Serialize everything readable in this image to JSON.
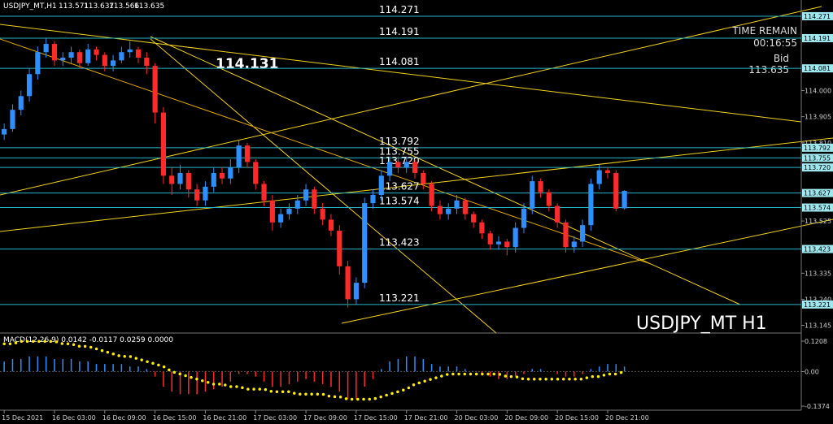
{
  "header": {
    "symbol": "USDJPY_MT,H1"
  },
  "chart_data": [
    {
      "type": "candlestick",
      "candles": [
        [
          113.84,
          113.88,
          113.82,
          113.86
        ],
        [
          113.86,
          113.95,
          113.85,
          113.93
        ],
        [
          113.93,
          114.0,
          113.91,
          113.98
        ],
        [
          113.98,
          114.08,
          113.96,
          114.06
        ],
        [
          114.06,
          114.16,
          114.04,
          114.14
        ],
        [
          114.14,
          114.19,
          114.12,
          114.17
        ],
        [
          114.17,
          114.18,
          114.09,
          114.11
        ],
        [
          114.11,
          114.14,
          114.09,
          114.12
        ],
        [
          114.12,
          114.16,
          114.1,
          114.14
        ],
        [
          114.14,
          114.15,
          114.08,
          114.1
        ],
        [
          114.1,
          114.17,
          114.09,
          114.15
        ],
        [
          114.15,
          114.16,
          114.11,
          114.13
        ],
        [
          114.13,
          114.14,
          114.07,
          114.09
        ],
        [
          114.09,
          114.13,
          114.07,
          114.11
        ],
        [
          114.11,
          114.16,
          114.1,
          114.14
        ],
        [
          114.14,
          114.18,
          114.12,
          114.15
        ],
        [
          114.15,
          114.16,
          114.1,
          114.12
        ],
        [
          114.12,
          114.14,
          114.06,
          114.09
        ],
        [
          114.09,
          114.1,
          113.88,
          113.92
        ],
        [
          113.92,
          113.94,
          113.66,
          113.69
        ],
        [
          113.69,
          113.72,
          113.62,
          113.66
        ],
        [
          113.66,
          113.73,
          113.64,
          113.7
        ],
        [
          113.7,
          113.71,
          113.61,
          113.64
        ],
        [
          113.64,
          113.66,
          113.58,
          113.6
        ],
        [
          113.6,
          113.67,
          113.58,
          113.65
        ],
        [
          113.65,
          113.72,
          113.63,
          113.7
        ],
        [
          113.7,
          113.72,
          113.66,
          113.68
        ],
        [
          113.68,
          113.75,
          113.66,
          113.72
        ],
        [
          113.72,
          113.82,
          113.7,
          113.8
        ],
        [
          113.8,
          113.81,
          113.72,
          113.74
        ],
        [
          113.74,
          113.75,
          113.64,
          113.66
        ],
        [
          113.66,
          113.67,
          113.58,
          113.6
        ],
        [
          113.6,
          113.62,
          113.49,
          113.52
        ],
        [
          113.52,
          113.57,
          113.5,
          113.55
        ],
        [
          113.55,
          113.59,
          113.53,
          113.57
        ],
        [
          113.57,
          113.62,
          113.55,
          113.6
        ],
        [
          113.6,
          113.66,
          113.58,
          113.64
        ],
        [
          113.64,
          113.65,
          113.55,
          113.57
        ],
        [
          113.57,
          113.59,
          113.51,
          113.53
        ],
        [
          113.53,
          113.55,
          113.47,
          113.49
        ],
        [
          113.49,
          113.51,
          113.33,
          113.36
        ],
        [
          113.36,
          113.38,
          113.21,
          113.24
        ],
        [
          113.24,
          113.32,
          113.22,
          113.3
        ],
        [
          113.3,
          113.61,
          113.28,
          113.59
        ],
        [
          113.59,
          113.64,
          113.57,
          113.62
        ],
        [
          113.62,
          113.71,
          113.6,
          113.69
        ],
        [
          113.69,
          113.76,
          113.67,
          113.74
        ],
        [
          113.74,
          113.76,
          113.7,
          113.72
        ],
        [
          113.72,
          113.76,
          113.7,
          113.74
        ],
        [
          113.74,
          113.75,
          113.68,
          113.7
        ],
        [
          113.7,
          113.71,
          113.64,
          113.66
        ],
        [
          113.66,
          113.67,
          113.56,
          113.58
        ],
        [
          113.58,
          113.6,
          113.53,
          113.55
        ],
        [
          113.55,
          113.59,
          113.53,
          113.57
        ],
        [
          113.57,
          113.62,
          113.55,
          113.6
        ],
        [
          113.6,
          113.61,
          113.53,
          113.55
        ],
        [
          113.55,
          113.56,
          113.5,
          113.52
        ],
        [
          113.52,
          113.53,
          113.46,
          113.48
        ],
        [
          113.48,
          113.49,
          113.42,
          113.44
        ],
        [
          113.44,
          113.47,
          113.42,
          113.45
        ],
        [
          113.45,
          113.46,
          113.4,
          113.43
        ],
        [
          113.43,
          113.52,
          113.41,
          113.5
        ],
        [
          113.5,
          113.59,
          113.48,
          113.57
        ],
        [
          113.57,
          113.69,
          113.55,
          113.67
        ],
        [
          113.67,
          113.68,
          113.61,
          113.63
        ],
        [
          113.63,
          113.64,
          113.56,
          113.58
        ],
        [
          113.58,
          113.59,
          113.5,
          113.52
        ],
        [
          113.52,
          113.53,
          113.41,
          113.43
        ],
        [
          113.43,
          113.47,
          113.41,
          113.45
        ],
        [
          113.45,
          113.53,
          113.43,
          113.51
        ],
        [
          113.51,
          113.68,
          113.49,
          113.66
        ],
        [
          113.66,
          113.73,
          113.64,
          113.71
        ],
        [
          113.71,
          113.72,
          113.68,
          113.7
        ],
        [
          113.7,
          113.71,
          113.56,
          113.57
        ],
        [
          113.571,
          113.637,
          113.566,
          113.635
        ]
      ],
      "up_color": "#2f8fff",
      "down_color": "#ff2a2a",
      "xlim": [
        -0.5,
        95.1
      ],
      "ylim": [
        113.117,
        114.33
      ],
      "xticks": [
        {
          "value": 0,
          "label": "15 Dec 2021"
        },
        {
          "value": 6,
          "label": "16 Dec 03:00"
        },
        {
          "value": 12,
          "label": "16 Dec 09:00"
        },
        {
          "value": 18,
          "label": "16 Dec 15:00"
        },
        {
          "value": 24,
          "label": "16 Dec 21:00"
        },
        {
          "value": 30,
          "label": "17 Dec 03:00"
        },
        {
          "value": 36,
          "label": "17 Dec 09:00"
        },
        {
          "value": 42,
          "label": "17 Dec 15:00"
        },
        {
          "value": 48,
          "label": "17 Dec 21:00"
        },
        {
          "value": 54,
          "label": "20 Dec 03:00"
        },
        {
          "value": 60,
          "label": "20 Dec 09:00"
        },
        {
          "value": 66,
          "label": "20 Dec 15:00"
        },
        {
          "value": 72,
          "label": "20 Dec 21:00"
        }
      ],
      "yticks": [
        {
          "value": 114.0,
          "label": "114.000"
        },
        {
          "value": 113.905,
          "label": "113.905"
        },
        {
          "value": 113.81,
          "label": "113.810"
        },
        {
          "value": 113.525,
          "label": "113.525"
        },
        {
          "value": 113.335,
          "label": "113.335"
        },
        {
          "value": 113.24,
          "label": "113.240"
        },
        {
          "value": 113.145,
          "label": "113.145"
        }
      ],
      "levels": [
        {
          "value": 114.271,
          "label": "114.271"
        },
        {
          "value": 114.191,
          "label": "114.191"
        },
        {
          "value": 114.081,
          "label": "114.081"
        },
        {
          "value": 113.792,
          "label": "113.792"
        },
        {
          "value": 113.755,
          "label": "113.755"
        },
        {
          "value": 113.72,
          "label": "113.720"
        },
        {
          "value": 113.627,
          "label": "113.627"
        },
        {
          "value": 113.574,
          "label": "113.574"
        },
        {
          "value": 113.423,
          "label": "113.423"
        },
        {
          "value": 113.221,
          "label": "113.221"
        }
      ],
      "level_color": "#27b5c5",
      "annotation": "114.131",
      "watermark": "USDJPY_MT H1",
      "info": {
        "time_remain_label": "TIME REMAIN",
        "time_remain": "00:16:55",
        "bid_label": "Bid"
      }
    },
    {
      "type": "macd",
      "label": "MACD(12,26,9) 0.0142 -0.0117 0.0259 0.0000",
      "histogram": [
        0.04,
        0.05,
        0.05,
        0.06,
        0.06,
        0.06,
        0.05,
        0.05,
        0.05,
        0.04,
        0.04,
        0.03,
        0.03,
        0.03,
        0.03,
        0.02,
        0.02,
        0.01,
        -0.02,
        -0.06,
        -0.08,
        -0.09,
        -0.09,
        -0.09,
        -0.08,
        -0.07,
        -0.06,
        -0.04,
        -0.01,
        -0.01,
        -0.02,
        -0.04,
        -0.06,
        -0.06,
        -0.05,
        -0.04,
        -0.03,
        -0.04,
        -0.05,
        -0.06,
        -0.08,
        -0.11,
        -0.11,
        -0.06,
        -0.03,
        0.01,
        0.04,
        0.05,
        0.06,
        0.06,
        0.05,
        0.03,
        0.02,
        0.02,
        0.02,
        0.01,
        0.0,
        -0.01,
        -0.02,
        -0.03,
        -0.03,
        -0.02,
        -0.01,
        0.01,
        0.01,
        0.0,
        -0.01,
        -0.02,
        -0.02,
        -0.01,
        0.01,
        0.02,
        0.03,
        0.03,
        0.02
      ],
      "signal": [
        0.11,
        0.11,
        0.12,
        0.12,
        0.12,
        0.12,
        0.12,
        0.11,
        0.11,
        0.1,
        0.1,
        0.09,
        0.08,
        0.07,
        0.06,
        0.06,
        0.05,
        0.04,
        0.03,
        0.02,
        0.0,
        -0.01,
        -0.02,
        -0.03,
        -0.04,
        -0.05,
        -0.05,
        -0.06,
        -0.06,
        -0.07,
        -0.07,
        -0.07,
        -0.08,
        -0.08,
        -0.08,
        -0.09,
        -0.09,
        -0.09,
        -0.09,
        -0.1,
        -0.1,
        -0.11,
        -0.11,
        -0.11,
        -0.11,
        -0.1,
        -0.09,
        -0.08,
        -0.07,
        -0.05,
        -0.04,
        -0.03,
        -0.02,
        -0.01,
        -0.01,
        -0.01,
        -0.01,
        -0.01,
        -0.01,
        -0.01,
        -0.02,
        -0.02,
        -0.03,
        -0.03,
        -0.03,
        -0.03,
        -0.03,
        -0.03,
        -0.03,
        -0.03,
        -0.02,
        -0.02,
        -0.01,
        -0.01,
        0.0
      ],
      "up_color": "#2f8fff",
      "down_color": "#ff2a2a",
      "signal_color": "#ffee00",
      "ylim": [
        -0.1535,
        0.1466
      ],
      "yticks": [
        0.1208,
        {
          "value": 0,
          "label": "0.00"
        },
        -0.1374
      ]
    }
  ]
}
